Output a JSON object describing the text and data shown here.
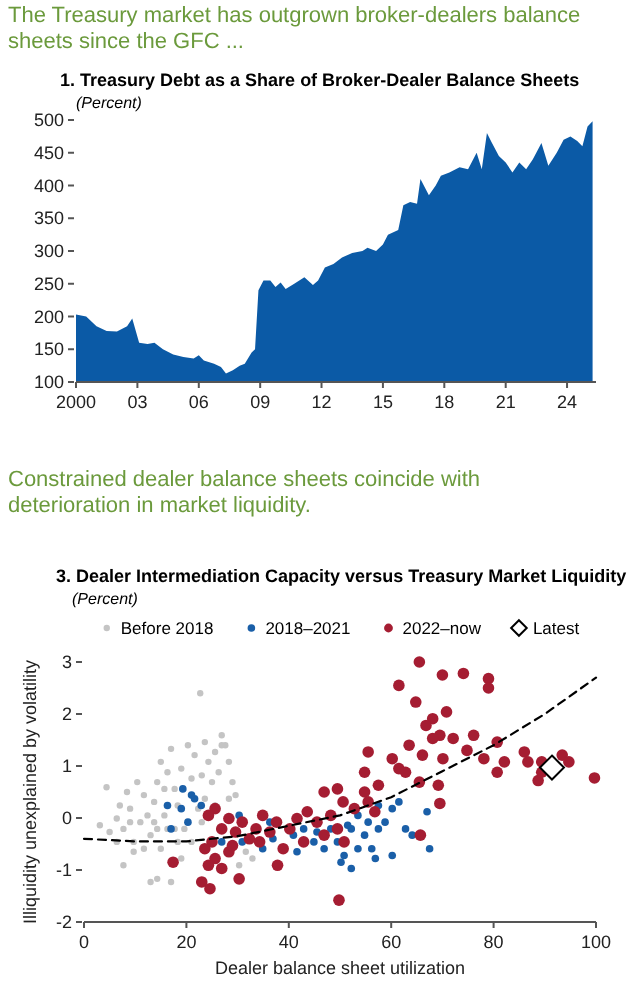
{
  "chart_data": [
    {
      "type": "area",
      "title": "1. Treasury Debt as a Share of Broker-Dealer Balance Sheets",
      "subtitle": "(Percent)",
      "annotations": [
        "The Treasury market has outgrown broker-dealers balance sheets since the GFC ..."
      ],
      "x": [
        "2000-01",
        "2000-07",
        "2001-01",
        "2001-07",
        "2002-01",
        "2002-07",
        "2002-10",
        "2003-02",
        "2003-07",
        "2003-11",
        "2004-04",
        "2004-10",
        "2005-04",
        "2005-10",
        "2006-01",
        "2006-04",
        "2006-10",
        "2007-02",
        "2007-05",
        "2007-09",
        "2008-01",
        "2008-04",
        "2008-08",
        "2008-10",
        "2008-12",
        "2009-03",
        "2009-07",
        "2009-10",
        "2010-01",
        "2010-04",
        "2010-09",
        "2011-03",
        "2011-08",
        "2011-11",
        "2012-03",
        "2012-08",
        "2013-01",
        "2013-07",
        "2014-01",
        "2014-04",
        "2014-09",
        "2015-01",
        "2015-04",
        "2015-10",
        "2016-01",
        "2016-05",
        "2016-09",
        "2016-11",
        "2017-04",
        "2017-08",
        "2017-11",
        "2018-04",
        "2018-10",
        "2019-03",
        "2019-08",
        "2019-11",
        "2020-02",
        "2020-05",
        "2020-09",
        "2021-01",
        "2021-05",
        "2021-09",
        "2022-01",
        "2022-05",
        "2022-10",
        "2023-02",
        "2023-07",
        "2023-11",
        "2024-03",
        "2024-07",
        "2024-10",
        "2025-01",
        "2025-04"
      ],
      "series": [
        {
          "color": "#0b5aa6",
          "values": [
            203,
            200,
            185,
            178,
            177,
            185,
            197,
            160,
            158,
            160,
            150,
            142,
            138,
            136,
            141,
            133,
            128,
            123,
            113,
            118,
            125,
            128,
            145,
            150,
            240,
            255,
            255,
            245,
            252,
            242,
            250,
            260,
            248,
            255,
            275,
            280,
            290,
            297,
            300,
            305,
            300,
            310,
            325,
            332,
            370,
            375,
            372,
            410,
            385,
            400,
            415,
            420,
            428,
            425,
            450,
            425,
            480,
            465,
            445,
            435,
            420,
            435,
            425,
            440,
            465,
            430,
            450,
            470,
            475,
            468,
            460,
            490,
            498
          ]
        }
      ],
      "xlim": [
        "2000",
        "2025-06"
      ],
      "xticks": [
        {
          "value": "2000",
          "label": "2000"
        },
        {
          "value": "2003",
          "label": "03"
        },
        {
          "value": "2006",
          "label": "06"
        },
        {
          "value": "2009",
          "label": "09"
        },
        {
          "value": "2012",
          "label": "12"
        },
        {
          "value": "2015",
          "label": "15"
        },
        {
          "value": "2018",
          "label": "18"
        },
        {
          "value": "2021",
          "label": "21"
        },
        {
          "value": "2024",
          "label": "24"
        }
      ],
      "ylim": [
        100,
        500
      ],
      "yticks": [
        100,
        150,
        200,
        250,
        300,
        350,
        400,
        450,
        500
      ],
      "grid": false,
      "legend": false
    },
    {
      "type": "scatter",
      "title": "3. Dealer Intermediation Capacity versus Treasury Market Liquidity",
      "subtitle": "(Percent)",
      "annotations": [
        "Constrained dealer balance sheets coincide with deterioration in market liquidity."
      ],
      "xlabel": "Dealer balance sheet utilization",
      "ylabel": "Illiquidity unexplained by volatility",
      "series": [
        {
          "name": "Before 2018",
          "color": "#c4c4c4",
          "x": [
            4.4,
            6.4,
            7.7,
            9,
            9.7,
            11,
            11.7,
            12.4,
            13,
            13.7,
            14.3,
            15,
            15.7,
            16.3,
            17,
            17.7,
            18.3,
            19,
            20.3,
            21.6,
            22.7,
            23,
            23.6,
            24.3,
            25,
            25.6,
            26.3,
            26.9,
            27.6,
            28.3,
            29,
            29.6,
            25.6,
            23,
            21,
            19,
            17,
            14.3,
            13,
            7.7,
            9.7,
            6.4,
            3.1,
            5,
            8.4,
            10.4,
            15.7,
            17.7,
            19.6,
            23.6,
            28.3,
            31.6,
            32.9,
            30.3,
            26.9,
            11.7,
            15,
            9,
            7,
            13.7,
            16.3,
            18.3,
            21,
            22.3,
            14.3
          ],
          "values": [
            0.59,
            -0.01,
            -0.21,
            0.18,
            -0.46,
            -0.08,
            0.44,
            0.05,
            -0.33,
            0.31,
            0.69,
            1.08,
            0.05,
            0.88,
            1.33,
            0.56,
            -0.46,
            0.95,
            1.4,
            1.21,
            2.4,
            0.82,
            1.46,
            1.08,
            0.69,
            1.27,
            0.88,
            1.59,
            1.4,
            1.08,
            0.69,
            0.44,
            0.24,
            -0.08,
            -0.46,
            -0.78,
            -1.23,
            -1.17,
            -1.23,
            -0.91,
            -0.65,
            -0.46,
            -0.14,
            -0.27,
            0.5,
            0.69,
            0.56,
            -0.21,
            -0.21,
            0.37,
            0.37,
            -0.65,
            -0.78,
            -0.91,
            1.4,
            -0.59,
            -0.59,
            -0.08,
            0.24,
            -0.08,
            -0.21,
            0.24,
            0.76,
            0.18,
            -0.21
          ]
        },
        {
          "name": "2018–2021",
          "color": "#1a5fa8",
          "x": [
            19.3,
            16.3,
            19,
            21.6,
            20.3,
            17,
            22.9,
            21,
            26.9,
            30.9,
            34.9,
            36.9,
            40.9,
            42.9,
            44.9,
            46.9,
            48.2,
            49.5,
            50.8,
            52.2,
            50.2,
            53.5,
            54.8,
            56.2,
            57.5,
            58.8,
            60.2,
            61.5,
            62.8,
            64.1,
            67,
            67.5,
            60.2,
            56.9,
            52.2,
            53.5,
            55.5,
            51.5,
            36.3,
            30.3,
            41.6,
            45.5,
            57.5
          ],
          "values": [
            0.56,
            0.24,
            0.18,
            0.37,
            -0.08,
            -0.21,
            0.24,
            0.44,
            -0.46,
            -0.46,
            -0.59,
            -0.4,
            -0.33,
            -0.21,
            -0.46,
            -0.59,
            -0.21,
            -0.46,
            -0.72,
            -0.97,
            -0.85,
            -0.59,
            -0.33,
            -0.59,
            -0.21,
            -0.08,
            0.18,
            0.31,
            -0.21,
            -0.33,
            0.12,
            -0.59,
            -0.72,
            -0.78,
            -0.21,
            0.05,
            -0.08,
            -0.14,
            -0.08,
            0.05,
            -0.65,
            -0.27,
            0.24
          ]
        },
        {
          "name": "2022–now",
          "color": "#a51d32",
          "x": [
            65.5,
            70,
            74.1,
            79,
            79,
            61.5,
            64.8,
            68.1,
            66.8,
            70.8,
            69.5,
            72.1,
            68.1,
            76.1,
            63.5,
            60.2,
            66.1,
            70.1,
            74.8,
            80.7,
            82.1,
            78.1,
            80.7,
            86,
            86.7,
            89.4,
            93.4,
            94.7,
            88.7,
            99.7,
            89.4,
            55.5,
            54.8,
            61.5,
            62.8,
            69.2,
            69.5,
            65.5,
            57.5,
            54.8,
            52.8,
            55.5,
            56.8,
            49.5,
            46.9,
            50.6,
            48.2,
            45.5,
            43.6,
            41.6,
            40.2,
            49.5,
            50.8,
            46.9,
            37.6,
            36.3,
            34.9,
            33.6,
            32.3,
            30.9,
            29.6,
            28.3,
            26.9,
            25.6,
            24.3,
            25,
            23.6,
            25.6,
            24.3,
            23,
            24.6,
            26.9,
            28.3,
            30.3,
            29,
            17.4,
            37.8,
            38.9,
            49.8,
            65.7,
            34.3,
            42.9
          ],
          "values": [
            3.0,
            2.75,
            2.78,
            2.68,
            2.5,
            2.55,
            2.23,
            1.91,
            1.78,
            2.04,
            1.59,
            1.53,
            1.53,
            1.59,
            1.4,
            1.14,
            1.21,
            1.14,
            1.3,
            1.46,
            1.08,
            1.14,
            0.88,
            1.27,
            1.08,
            1.08,
            1.21,
            1.08,
            0.72,
            0.77,
            0.88,
            1.27,
            0.88,
            0.95,
            0.88,
            0.63,
            0.28,
            0.69,
            0.63,
            0.5,
            0.18,
            0.31,
            0.12,
            0.56,
            0.5,
            0.31,
            0.05,
            -0.08,
            0.12,
            -0.01,
            -0.21,
            -0.21,
            -0.46,
            -0.33,
            -0.08,
            -0.27,
            0.05,
            -0.21,
            -0.4,
            -0.08,
            -0.27,
            -0.01,
            -0.21,
            0.18,
            0.05,
            -0.46,
            -0.59,
            -0.78,
            -0.91,
            -1.23,
            -1.36,
            -0.97,
            -0.65,
            -1.17,
            -0.53,
            -0.85,
            -0.91,
            -0.59,
            -1.58,
            -0.33,
            -0.46,
            -0.46
          ]
        },
        {
          "name": "Latest",
          "color": "#000000",
          "marker": "diamond",
          "x": [
            91.4
          ],
          "values": [
            0.97
          ]
        },
        {
          "type": "line",
          "color": "#000000",
          "line_style": "dashed",
          "marker": "none",
          "x": [
            0,
            10,
            20,
            30,
            40,
            50,
            60,
            70,
            80,
            90,
            100
          ],
          "values": [
            -0.4,
            -0.45,
            -0.45,
            -0.35,
            -0.15,
            0.05,
            0.4,
            0.9,
            1.4,
            2.0,
            2.7
          ]
        }
      ],
      "marker": "circle",
      "xlim": [
        0,
        100
      ],
      "xticks": [
        0,
        20,
        40,
        60,
        80,
        100
      ],
      "ylim": [
        -2,
        3
      ],
      "yticks": [
        -2,
        -1,
        0,
        1,
        2,
        3
      ],
      "grid": false,
      "legend": "top"
    }
  ]
}
